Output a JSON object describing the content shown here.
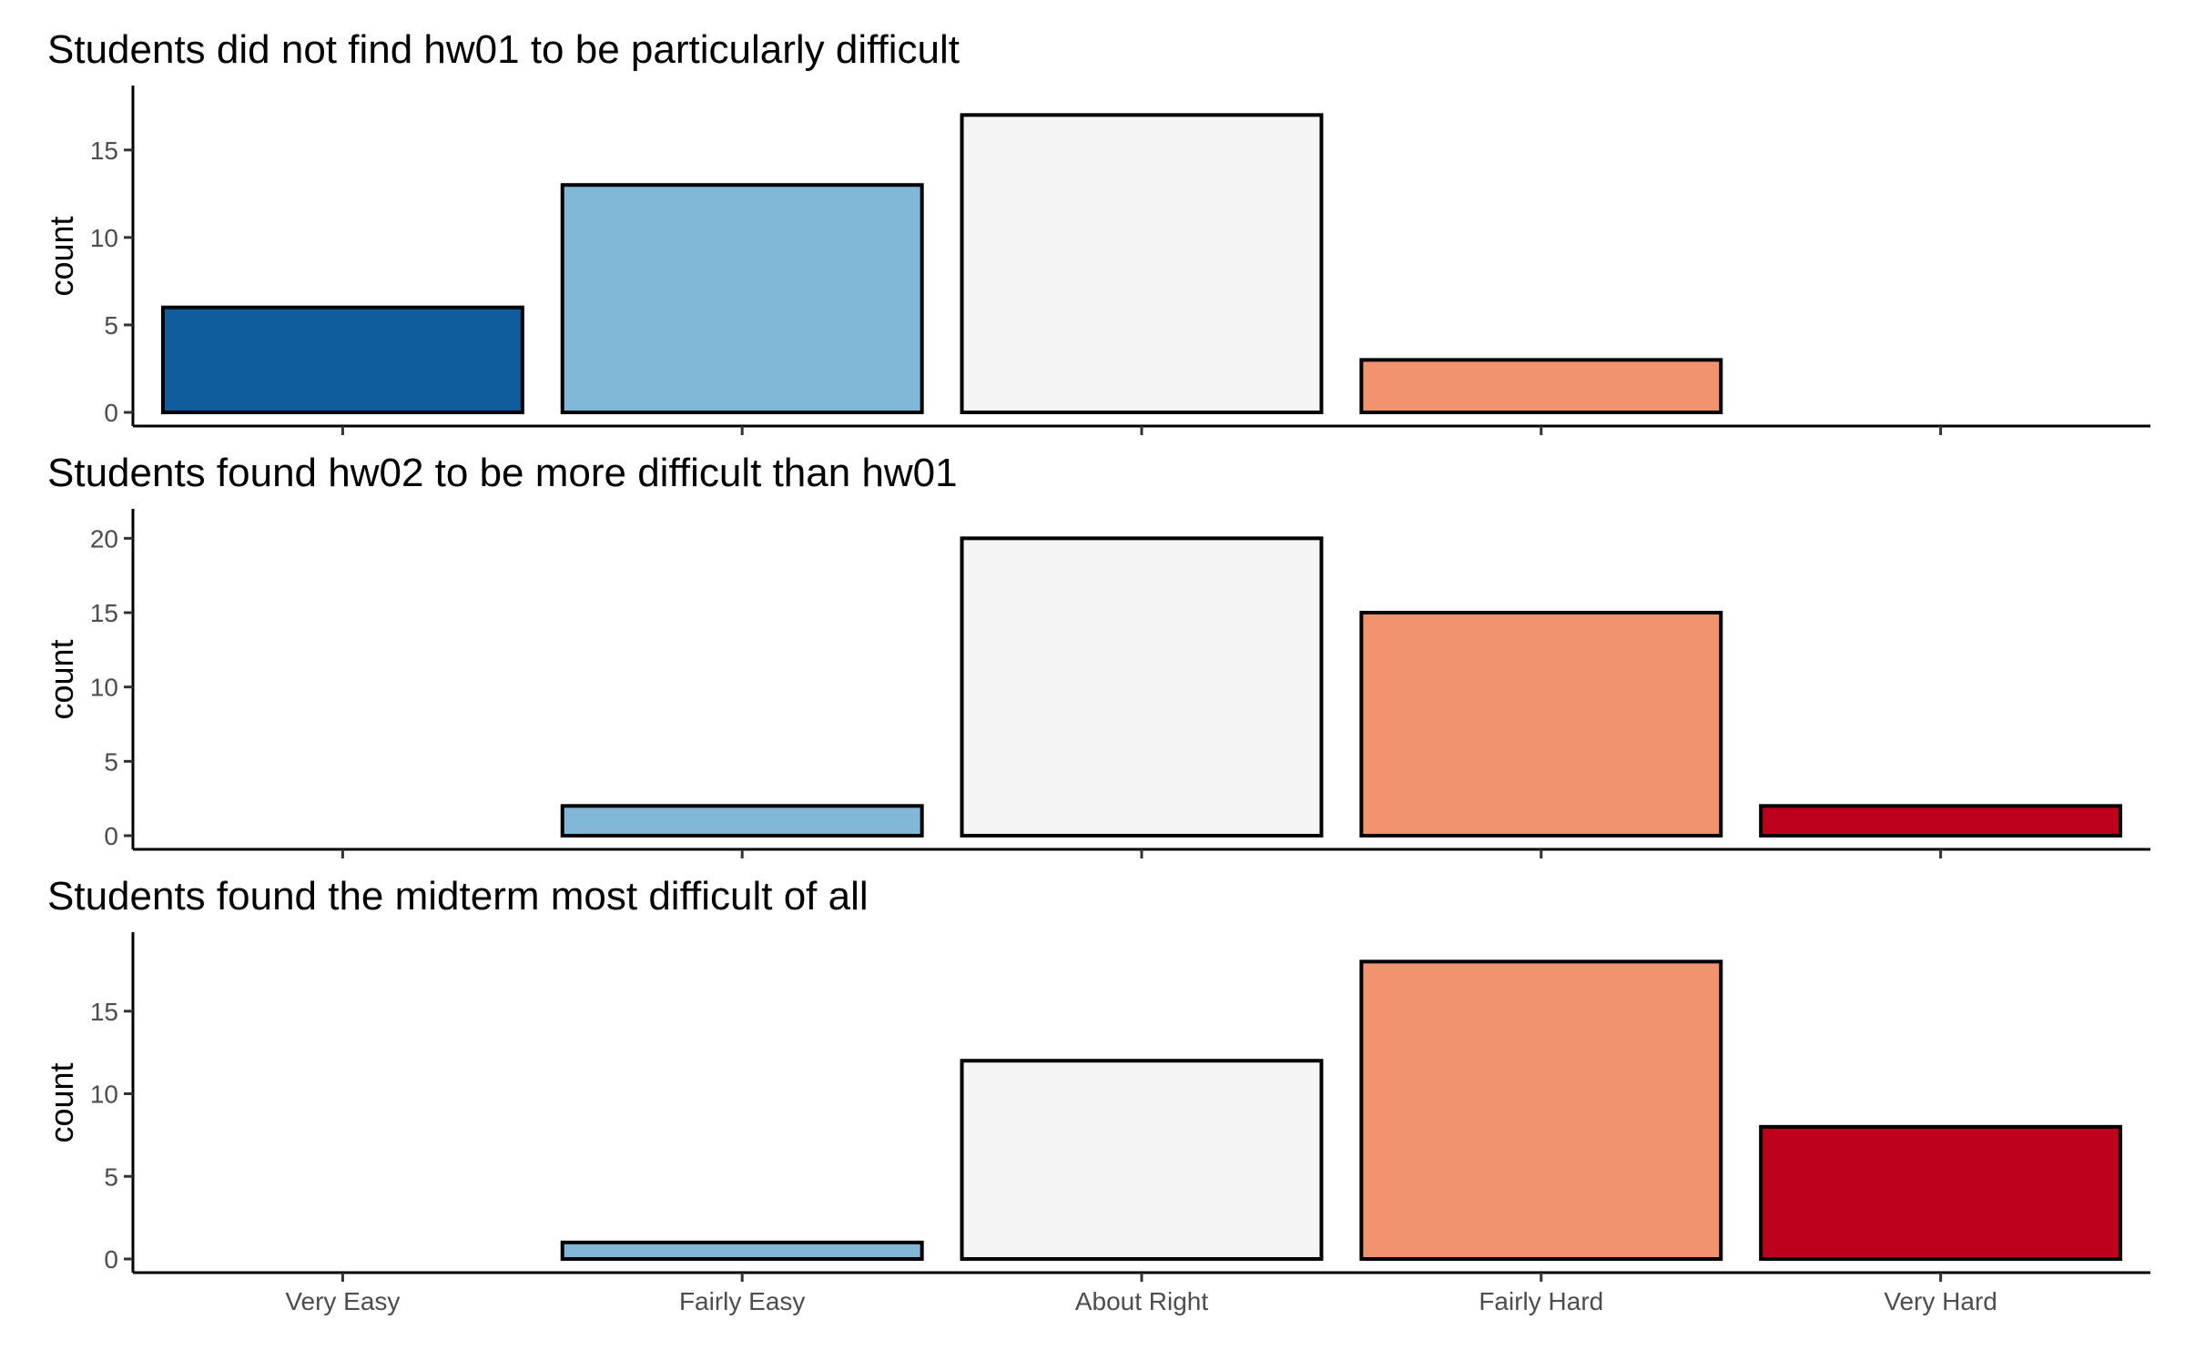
{
  "chart_data": [
    {
      "type": "bar",
      "title": "Students did not find hw01 to be particularly difficult",
      "ylabel": "count",
      "xlabel": "",
      "categories": [
        "Very Easy",
        "Fairly Easy",
        "About Right",
        "Fairly Hard",
        "Very Hard"
      ],
      "values": [
        6,
        13,
        17,
        3,
        0
      ],
      "ylim": [
        0,
        17.85
      ],
      "yticks": [
        "0",
        "5",
        "10",
        "15"
      ],
      "show_xtick_labels": false
    },
    {
      "type": "bar",
      "title": "Students found hw02 to be more difficult than hw01",
      "ylabel": "count",
      "xlabel": "",
      "categories": [
        "Very Easy",
        "Fairly Easy",
        "About Right",
        "Fairly Hard",
        "Very Hard"
      ],
      "values": [
        0,
        2,
        20,
        15,
        2
      ],
      "ylim": [
        0,
        21
      ],
      "yticks": [
        "0",
        "5",
        "10",
        "15",
        "20"
      ],
      "show_xtick_labels": false
    },
    {
      "type": "bar",
      "title": "Students found the midterm most difficult of all",
      "ylabel": "count",
      "xlabel": "",
      "categories": [
        "Very Easy",
        "Fairly Easy",
        "About Right",
        "Fairly Hard",
        "Very Hard"
      ],
      "values": [
        0,
        1,
        12,
        18,
        8
      ],
      "ylim": [
        0,
        18.9
      ],
      "yticks": [
        "0",
        "5",
        "10",
        "15"
      ],
      "show_xtick_labels": true
    }
  ],
  "category_colors": [
    "#0f5c9e",
    "#82b8d7",
    "#f4f4f4",
    "#f0936f",
    "#bd001c"
  ],
  "grid": false,
  "legend": "none"
}
